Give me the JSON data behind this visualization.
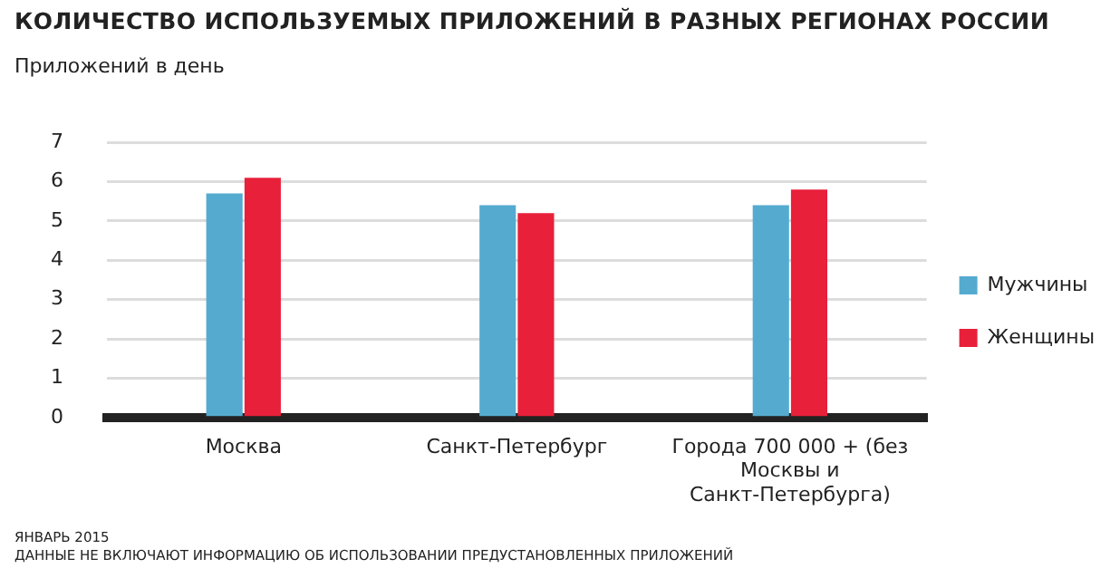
{
  "chart_data": {
    "type": "bar",
    "title": "КОЛИЧЕСТВО ИСПОЛЬЗУЕМЫХ ПРИЛОЖЕНИЙ В РАЗНЫХ РЕГИОНАХ РОССИИ",
    "ylabel": "Приложений в день",
    "categories": [
      "Москва",
      "Санкт-Петербург",
      "Города 700 000 + (без Москвы и Санкт-Петербурга)"
    ],
    "series": [
      {
        "name": "Мужчины",
        "color": "#55aacf",
        "values": [
          5.7,
          5.4,
          5.4
        ]
      },
      {
        "name": "Женщины",
        "color": "#e8203a",
        "values": [
          6.1,
          5.2,
          5.8
        ]
      }
    ],
    "ylim": [
      0,
      7
    ],
    "yticks": [
      0,
      1,
      2,
      3,
      4,
      5,
      6,
      7
    ],
    "grid": "y",
    "legend": "right",
    "annotations": [
      "ЯНВАРЬ 2015",
      "ДАННЫЕ НЕ ВКЛЮЧАЮТ ИНФОРМАЦИЮ ОБ ИСПОЛЬЗОВАНИИ ПРЕДУСТАНОВЛЕННЫХ ПРИЛОЖЕНИЙ"
    ]
  }
}
